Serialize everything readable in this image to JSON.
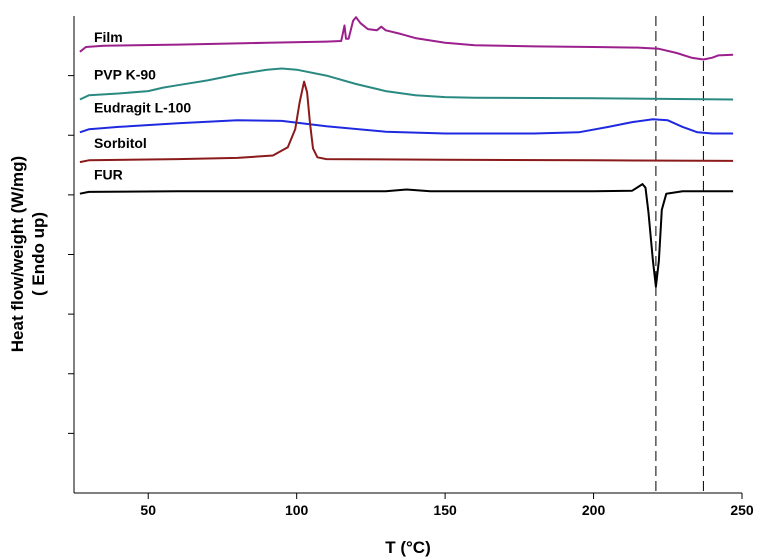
{
  "chart_data": {
    "type": "line",
    "title": "",
    "xlabel": "T (°C)",
    "ylabel_line1": "Heat flow/weight (W/mg)",
    "ylabel_line2": "( Endo up)",
    "xlim": [
      25,
      250
    ],
    "x_ticks": [
      50,
      100,
      150,
      200,
      250
    ],
    "ylim": [
      0,
      8
    ],
    "y_ticks_unlabeled": [
      1,
      2,
      3,
      4,
      5,
      6,
      7
    ],
    "grid": false,
    "legend": "none",
    "reference_lines_x": [
      221,
      237
    ],
    "series": [
      {
        "name": "Film",
        "color": "#9b1f8c",
        "points": [
          [
            27,
            7.4
          ],
          [
            29,
            7.48
          ],
          [
            35,
            7.5
          ],
          [
            60,
            7.52
          ],
          [
            90,
            7.55
          ],
          [
            110,
            7.57
          ],
          [
            115,
            7.58
          ],
          [
            115.6,
            7.72
          ],
          [
            116.1,
            7.84
          ],
          [
            116.6,
            7.62
          ],
          [
            117.5,
            7.62
          ],
          [
            119,
            7.92
          ],
          [
            120,
            7.98
          ],
          [
            121.5,
            7.88
          ],
          [
            124,
            7.78
          ],
          [
            127,
            7.76
          ],
          [
            128.5,
            7.82
          ],
          [
            130,
            7.76
          ],
          [
            135,
            7.7
          ],
          [
            140,
            7.63
          ],
          [
            150,
            7.55
          ],
          [
            160,
            7.51
          ],
          [
            180,
            7.49
          ],
          [
            200,
            7.48
          ],
          [
            215,
            7.47
          ],
          [
            222,
            7.45
          ],
          [
            228,
            7.38
          ],
          [
            233,
            7.3
          ],
          [
            237,
            7.27
          ],
          [
            240,
            7.3
          ],
          [
            242,
            7.34
          ],
          [
            247,
            7.35
          ]
        ]
      },
      {
        "name": "PVP K-90",
        "color": "#2a8a82",
        "points": [
          [
            27,
            6.6
          ],
          [
            30,
            6.67
          ],
          [
            40,
            6.7
          ],
          [
            50,
            6.74
          ],
          [
            55,
            6.8
          ],
          [
            60,
            6.84
          ],
          [
            70,
            6.92
          ],
          [
            80,
            7.02
          ],
          [
            90,
            7.1
          ],
          [
            95,
            7.12
          ],
          [
            100,
            7.1
          ],
          [
            110,
            7.0
          ],
          [
            120,
            6.86
          ],
          [
            130,
            6.74
          ],
          [
            140,
            6.67
          ],
          [
            150,
            6.64
          ],
          [
            160,
            6.63
          ],
          [
            200,
            6.62
          ],
          [
            247,
            6.6
          ]
        ]
      },
      {
        "name": "Eudragit L-100",
        "color": "#1f2ae0",
        "points": [
          [
            27,
            6.05
          ],
          [
            30,
            6.1
          ],
          [
            40,
            6.14
          ],
          [
            60,
            6.2
          ],
          [
            80,
            6.25
          ],
          [
            95,
            6.24
          ],
          [
            110,
            6.15
          ],
          [
            130,
            6.06
          ],
          [
            150,
            6.03
          ],
          [
            180,
            6.03
          ],
          [
            195,
            6.05
          ],
          [
            205,
            6.14
          ],
          [
            213,
            6.22
          ],
          [
            220,
            6.27
          ],
          [
            225,
            6.25
          ],
          [
            230,
            6.14
          ],
          [
            235,
            6.05
          ],
          [
            240,
            6.03
          ],
          [
            247,
            6.03
          ]
        ]
      },
      {
        "name": "Sorbitol",
        "color": "#8b1a1a",
        "points": [
          [
            27,
            5.55
          ],
          [
            30,
            5.58
          ],
          [
            60,
            5.6
          ],
          [
            80,
            5.62
          ],
          [
            92,
            5.66
          ],
          [
            97,
            5.8
          ],
          [
            99.5,
            6.1
          ],
          [
            101,
            6.55
          ],
          [
            102.5,
            6.9
          ],
          [
            103.5,
            6.72
          ],
          [
            104.5,
            6.2
          ],
          [
            105.5,
            5.78
          ],
          [
            107,
            5.63
          ],
          [
            110,
            5.6
          ],
          [
            150,
            5.59
          ],
          [
            200,
            5.58
          ],
          [
            247,
            5.57
          ]
        ]
      },
      {
        "name": "FUR",
        "color": "#000000",
        "points": [
          [
            27,
            5.02
          ],
          [
            30,
            5.05
          ],
          [
            60,
            5.06
          ],
          [
            100,
            5.06
          ],
          [
            130,
            5.06
          ],
          [
            137,
            5.09
          ],
          [
            145,
            5.06
          ],
          [
            200,
            5.06
          ],
          [
            213,
            5.07
          ],
          [
            216.5,
            5.18
          ],
          [
            217.5,
            5.12
          ],
          [
            218.5,
            4.7
          ],
          [
            220,
            3.9
          ],
          [
            221,
            3.46
          ],
          [
            222,
            3.9
          ],
          [
            223,
            4.75
          ],
          [
            224.5,
            5.02
          ],
          [
            230,
            5.06
          ],
          [
            247,
            5.06
          ]
        ]
      }
    ]
  }
}
